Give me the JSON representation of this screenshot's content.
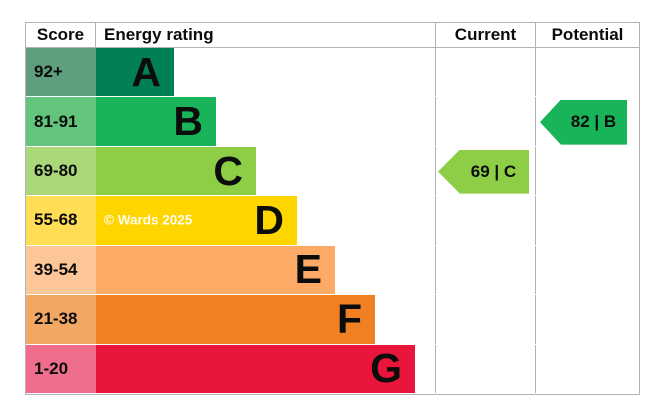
{
  "header": {
    "score": "Score",
    "energy_rating": "Energy rating",
    "current": "Current",
    "potential": "Potential"
  },
  "bands": [
    {
      "score_range": "92+",
      "letter": "A",
      "bar_color": "#008054",
      "score_color": "#5f9f7e"
    },
    {
      "score_range": "81-91",
      "letter": "B",
      "bar_color": "#19b459",
      "score_color": "#63c57b"
    },
    {
      "score_range": "69-80",
      "letter": "C",
      "bar_color": "#8dce46",
      "score_color": "#aad878"
    },
    {
      "score_range": "55-68",
      "letter": "D",
      "bar_color": "#ffd500",
      "score_color": "#ffde55"
    },
    {
      "score_range": "39-54",
      "letter": "E",
      "bar_color": "#fcaa65",
      "score_color": "#fcc698"
    },
    {
      "score_range": "21-38",
      "letter": "F",
      "bar_color": "#ef8023",
      "score_color": "#f3a765"
    },
    {
      "score_range": "1-20",
      "letter": "G",
      "bar_color": "#e9153b",
      "score_color": "#ef6e8b"
    }
  ],
  "current_arrow": {
    "label": "69 | C",
    "value": 69,
    "band": "C",
    "color": "#8dce46",
    "row_index": 2
  },
  "potential_arrow": {
    "label": "82 | B",
    "value": 82,
    "band": "B",
    "color": "#19b459",
    "row_index": 1
  },
  "watermark": "© Wards 2025",
  "chart_data": {
    "type": "bar",
    "title": "EPC energy efficiency rating chart",
    "categories": [
      "A",
      "B",
      "C",
      "D",
      "E",
      "F",
      "G"
    ],
    "score_ranges": [
      "92+",
      "81-91",
      "69-80",
      "55-68",
      "39-54",
      "21-38",
      "1-20"
    ],
    "band_colors": [
      "#008054",
      "#19b459",
      "#8dce46",
      "#ffd500",
      "#fcaa65",
      "#ef8023",
      "#e9153b"
    ],
    "columns": [
      "Score",
      "Energy rating",
      "Current",
      "Potential"
    ],
    "current": {
      "value": 69,
      "band": "C"
    },
    "potential": {
      "value": 82,
      "band": "B"
    },
    "legend_position": "none",
    "grid": false
  }
}
